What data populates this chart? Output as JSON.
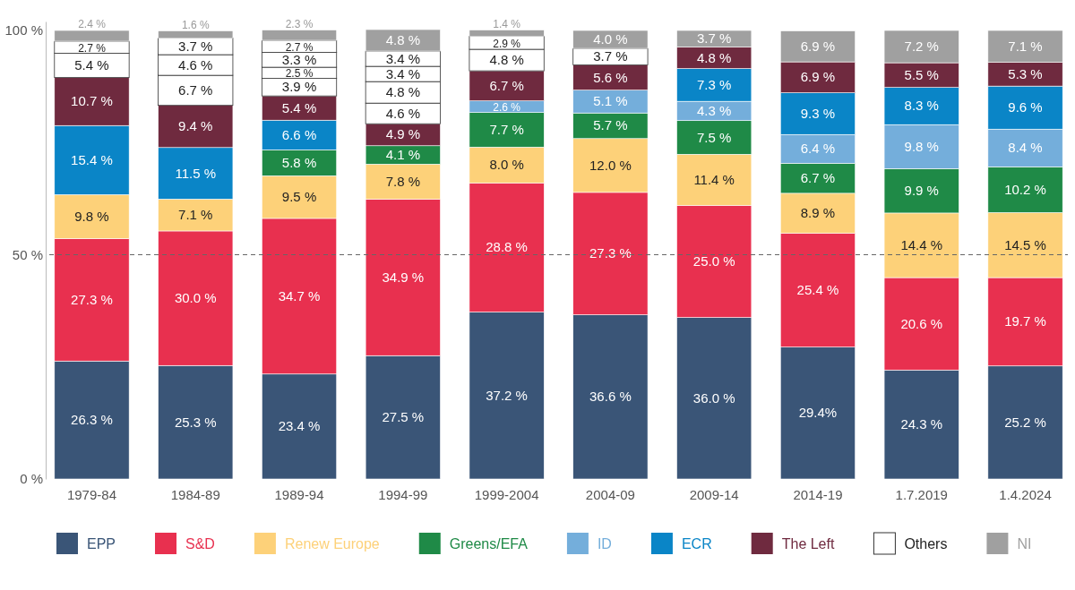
{
  "chart_data": {
    "type": "bar",
    "stacked": true,
    "categories": [
      "1979-84",
      "1984-89",
      "1989-94",
      "1994-99",
      "1999-2004",
      "2004-09",
      "2009-14",
      "2014-19",
      "1.7.2019",
      "1.4.2024"
    ],
    "ylim": [
      0,
      102
    ],
    "yticks": [
      {
        "value": 0,
        "label": "0 %"
      },
      {
        "value": 50,
        "label": "50 %"
      },
      {
        "value": 100,
        "label": "100 %"
      }
    ],
    "ref_lines": [
      {
        "axis": "y",
        "value": 50,
        "color": "#666666",
        "line_style": "dashed"
      }
    ],
    "legend": "bottom",
    "series": [
      {
        "name": "EPP",
        "color": "#3a5577",
        "values": [
          26.3,
          25.3,
          23.4,
          27.5,
          37.2,
          36.6,
          36.0,
          29.4,
          24.3,
          25.2
        ],
        "value_labels": [
          "26.3 %",
          "25.3 %",
          "23.4 %",
          "27.5 %",
          "37.2 %",
          "36.6 %",
          "36.0 %",
          "29.4%",
          "24.3 %",
          "25.2 %"
        ]
      },
      {
        "name": "S&D",
        "color": "#e8304f",
        "values": [
          27.3,
          30.0,
          34.7,
          34.9,
          28.8,
          27.3,
          25.0,
          25.4,
          20.6,
          19.7
        ],
        "value_labels": [
          "27.3 %",
          "30.0 %",
          "34.7 %",
          "34.9 %",
          "28.8 %",
          "27.3 %",
          "25.0 %",
          "25.4 %",
          "20.6 %",
          "19.7 %"
        ]
      },
      {
        "name": "Renew Europe",
        "color": "#fdd179",
        "values": [
          9.8,
          7.1,
          9.5,
          7.8,
          8.0,
          12.0,
          11.4,
          8.9,
          14.4,
          14.5
        ],
        "value_labels": [
          "9.8 %",
          "7.1 %",
          "9.5 %",
          "7.8 %",
          "8.0 %",
          "12.0 %",
          "11.4 %",
          "8.9 %",
          "14.4 %",
          "14.5 %"
        ]
      },
      {
        "name": "Greens/EFA",
        "color": "#1f8a47",
        "values": [
          null,
          null,
          5.8,
          4.1,
          7.7,
          5.7,
          7.5,
          6.7,
          9.9,
          10.2
        ],
        "value_labels": [
          null,
          null,
          "5.8 %",
          "4.1 %",
          "7.7 %",
          "5.7 %",
          "7.5 %",
          "6.7 %",
          "9.9 %",
          "10.2 %"
        ]
      },
      {
        "name": "ID",
        "color": "#74aedb",
        "values": [
          null,
          null,
          null,
          null,
          2.6,
          5.1,
          4.3,
          6.4,
          9.8,
          8.4
        ],
        "value_labels": [
          null,
          null,
          null,
          null,
          "2.6 %",
          "5.1 %",
          "4.3 %",
          "6.4 %",
          "9.8 %",
          "8.4 %"
        ]
      },
      {
        "name": "ECR",
        "color": "#0a85c7",
        "values": [
          15.4,
          11.5,
          6.6,
          null,
          null,
          null,
          7.3,
          9.3,
          8.3,
          9.6
        ],
        "value_labels": [
          "15.4 %",
          "11.5 %",
          "6.6 %",
          null,
          null,
          null,
          "7.3 %",
          "9.3 %",
          "8.3 %",
          "9.6 %"
        ]
      },
      {
        "name": "The Left",
        "color": "#6f2a3f",
        "values": [
          10.7,
          9.4,
          5.4,
          4.9,
          6.7,
          5.6,
          4.8,
          6.9,
          5.5,
          5.3
        ],
        "value_labels": [
          "10.7 %",
          "9.4 %",
          "5.4 %",
          "4.9 %",
          "6.7 %",
          "5.6 %",
          "4.8 %",
          "6.9 %",
          "5.5 %",
          "5.3 %"
        ]
      },
      {
        "name": "Others",
        "color": "#ffffff",
        "values": [
          5.4,
          6.7,
          3.9,
          4.6,
          4.8,
          3.7,
          null,
          null,
          null,
          null
        ],
        "value_labels": [
          "5.4 %",
          "6.7 %",
          "3.9 %",
          "4.6 %",
          "4.8 %",
          "3.7 %",
          null,
          null,
          null,
          null
        ]
      },
      {
        "color": "#ffffff",
        "values": [
          2.7,
          4.6,
          2.5,
          4.8,
          2.9,
          null,
          null,
          null,
          null,
          null
        ],
        "value_labels": [
          "2.7 %",
          "4.6 %",
          "2.5 %",
          "4.8 %",
          "2.9 %",
          null,
          null,
          null,
          null,
          null
        ]
      },
      {
        "color": "#ffffff",
        "values": [
          null,
          3.7,
          3.3,
          3.4,
          null,
          null,
          null,
          null,
          null,
          null
        ],
        "value_labels": [
          null,
          "3.7 %",
          "3.3 %",
          "3.4 %",
          null,
          null,
          null,
          null,
          null,
          null
        ]
      },
      {
        "color": "#ffffff",
        "values": [
          null,
          null,
          2.7,
          3.4,
          null,
          null,
          null,
          null,
          null,
          null
        ],
        "value_labels": [
          null,
          null,
          "2.7 %",
          "3.4 %",
          null,
          null,
          null,
          null,
          null,
          null
        ]
      },
      {
        "name": "NI",
        "color": "#a0a0a0",
        "values": [
          2.4,
          1.6,
          2.3,
          4.8,
          1.4,
          4.0,
          3.7,
          6.9,
          7.2,
          7.1
        ],
        "value_labels": [
          "2.4 %",
          "1.6 %",
          "2.3 %",
          "4.8 %",
          "1.4 %",
          "4.0 %",
          "3.7 %",
          "6.9 %",
          "7.2 %",
          "7.1 %"
        ]
      }
    ]
  }
}
